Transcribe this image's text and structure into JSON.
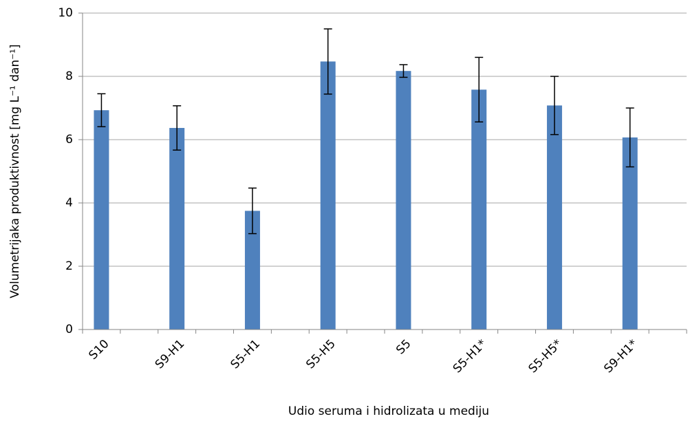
{
  "chart_data": {
    "type": "bar",
    "x_label": "Udio seruma i hidrolizata u mediju",
    "y_label": "Volumetrijaka produktivnost [mg L⁻¹ dan⁻¹]",
    "categories": [
      "S10",
      "S9-H1",
      "S5-H1",
      "S5-H5",
      "S5",
      "S5-H1*",
      "S5-H5*",
      "S9-H1*"
    ],
    "values": [
      6.93,
      6.37,
      3.75,
      8.47,
      8.17,
      7.58,
      7.08,
      6.07
    ],
    "errors": [
      0.52,
      0.7,
      0.72,
      1.03,
      0.2,
      1.02,
      0.92,
      0.93
    ],
    "color": "#4f81bd",
    "ylim": [
      0,
      10
    ],
    "yticks": [
      0,
      2,
      4,
      6,
      8,
      10
    ],
    "grid": true
  }
}
